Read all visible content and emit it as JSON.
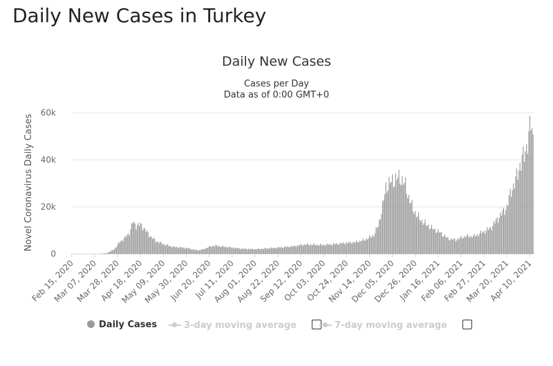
{
  "page": {
    "title": "Daily New Cases in Turkey"
  },
  "chart_data": {
    "type": "bar",
    "title": "Daily New Cases",
    "subtitle": "Cases per Day",
    "subtitle2": "Data as of 0:00 GMT+0",
    "ylabel": "Novel Coronavirus Daily Cases",
    "xlabel": "",
    "ylim": [
      0,
      60000
    ],
    "yticks": [
      "0",
      "20k",
      "40k",
      "60k"
    ],
    "ytick_values": [
      0,
      20000,
      40000,
      60000
    ],
    "grid": true,
    "bar_color": "#999999",
    "x_start": "2020-02-15",
    "x_end": "2021-04-13",
    "xticks": [
      "Feb 15, 2020",
      "Mar 07, 2020",
      "Mar 28, 2020",
      "Apr 18, 2020",
      "May 09, 2020",
      "May 30, 2020",
      "Jun 20, 2020",
      "Jul 11, 2020",
      "Aug 01, 2020",
      "Aug 22, 2020",
      "Sep 12, 2020",
      "Oct 03, 2020",
      "Oct 24, 2020",
      "Nov 14, 2020",
      "Dec 05, 2020",
      "Dec 26, 2020",
      "Jan 16, 2021",
      "Feb 06, 2021",
      "Feb 27, 2021",
      "Mar 20, 2021",
      "Apr 10, 2021"
    ],
    "series": [
      {
        "name": "Daily Cases",
        "keypoints": [
          [
            "2020-02-15",
            0
          ],
          [
            "2020-03-10",
            0
          ],
          [
            "2020-03-18",
            300
          ],
          [
            "2020-03-25",
            2000
          ],
          [
            "2020-03-30",
            5000
          ],
          [
            "2020-04-04",
            7000
          ],
          [
            "2020-04-08",
            9000
          ],
          [
            "2020-04-11",
            13500
          ],
          [
            "2020-04-14",
            12000
          ],
          [
            "2020-04-18",
            12500
          ],
          [
            "2020-04-22",
            10500
          ],
          [
            "2020-04-26",
            8000
          ],
          [
            "2020-05-02",
            5500
          ],
          [
            "2020-05-10",
            4000
          ],
          [
            "2020-05-18",
            3000
          ],
          [
            "2020-05-30",
            2500
          ],
          [
            "2020-06-10",
            1500
          ],
          [
            "2020-06-15",
            2000
          ],
          [
            "2020-06-20",
            3000
          ],
          [
            "2020-06-25",
            3500
          ],
          [
            "2020-07-05",
            3000
          ],
          [
            "2020-07-20",
            2200
          ],
          [
            "2020-08-01",
            2000
          ],
          [
            "2020-08-20",
            2600
          ],
          [
            "2020-09-05",
            3200
          ],
          [
            "2020-09-15",
            4000
          ],
          [
            "2020-10-03",
            3800
          ],
          [
            "2020-10-20",
            4500
          ],
          [
            "2020-11-01",
            5000
          ],
          [
            "2020-11-10",
            6000
          ],
          [
            "2020-11-18",
            8000
          ],
          [
            "2020-11-22",
            12000
          ],
          [
            "2020-11-26",
            20000
          ],
          [
            "2020-11-29",
            28500
          ],
          [
            "2020-12-05",
            31000
          ],
          [
            "2020-12-12",
            32500
          ],
          [
            "2020-12-17",
            29000
          ],
          [
            "2020-12-20",
            24000
          ],
          [
            "2020-12-24",
            19000
          ],
          [
            "2020-12-28",
            16000
          ],
          [
            "2021-01-01",
            14000
          ],
          [
            "2021-01-05",
            12500
          ],
          [
            "2021-01-10",
            11000
          ],
          [
            "2021-01-18",
            9000
          ],
          [
            "2021-01-25",
            6500
          ],
          [
            "2021-02-01",
            6000
          ],
          [
            "2021-02-10",
            7500
          ],
          [
            "2021-02-18",
            7500
          ],
          [
            "2021-02-27",
            9500
          ],
          [
            "2021-03-05",
            11000
          ],
          [
            "2021-03-10",
            14000
          ],
          [
            "2021-03-15",
            17000
          ],
          [
            "2021-03-20",
            20000
          ],
          [
            "2021-03-24",
            27000
          ],
          [
            "2021-03-28",
            31000
          ],
          [
            "2021-04-01",
            38000
          ],
          [
            "2021-04-05",
            42000
          ],
          [
            "2021-04-09",
            50000
          ],
          [
            "2021-04-11",
            55500
          ],
          [
            "2021-04-13",
            50000
          ]
        ]
      }
    ]
  },
  "legend": {
    "items": [
      {
        "label": "Daily Cases",
        "active": true
      },
      {
        "label": "3-day moving average",
        "active": false
      },
      {
        "label": "7-day moving average",
        "active": false
      }
    ]
  }
}
